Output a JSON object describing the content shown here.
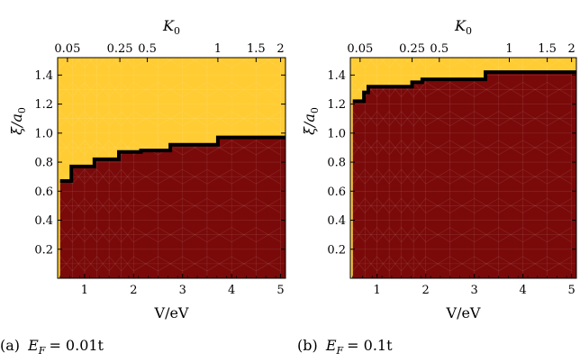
{
  "chart_data": [
    {
      "type": "area",
      "caption_prefix": "(a)",
      "caption_expr": "E",
      "caption_sub": "F",
      "caption_rest": "= 0.01t",
      "xlabel": "V/eV",
      "ylabel_symbol": "ξ",
      "ylabel_rest": "/a",
      "ylabel_sub": "0",
      "top_label": "K",
      "top_label_sub": "0",
      "xlim": [
        0.45,
        5.1
      ],
      "ylim": [
        0,
        1.52
      ],
      "xticks": [
        "1",
        "2",
        "3",
        "4",
        "5"
      ],
      "xtick_values": [
        1,
        2,
        3,
        4,
        5
      ],
      "yticks": [
        "0.2",
        "0.4",
        "0.6",
        "0.8",
        "1.0",
        "1.2",
        "1.4"
      ],
      "ytick_values": [
        0.2,
        0.4,
        0.6,
        0.8,
        1.0,
        1.2,
        1.4
      ],
      "top_ticks": [
        "0.05",
        "0.25",
        "0.5",
        "1",
        "1.5",
        "2"
      ],
      "top_tick_positions": [
        0.65,
        1.72,
        2.28,
        3.72,
        4.5,
        5.0
      ],
      "upper_region_color": "#ffcc33",
      "lower_region_color": "#7a0a0a",
      "boundary_color": "#000000",
      "boundary": {
        "x": [
          0.5,
          0.73,
          0.73,
          1.2,
          1.2,
          1.7,
          1.7,
          2.15,
          2.15,
          2.75,
          2.75,
          3.72,
          3.72,
          5.1
        ],
        "y": [
          0.67,
          0.67,
          0.77,
          0.77,
          0.82,
          0.82,
          0.87,
          0.87,
          0.88,
          0.88,
          0.92,
          0.92,
          0.97,
          0.97
        ]
      }
    },
    {
      "type": "area",
      "caption_prefix": "(b)",
      "caption_expr": "E",
      "caption_sub": "F",
      "caption_rest": "= 0.1t",
      "xlabel": "V/eV",
      "ylabel_symbol": "ξ",
      "ylabel_rest": "/a",
      "ylabel_sub": "0",
      "top_label": "K",
      "top_label_sub": "0",
      "xlim": [
        0.45,
        5.1
      ],
      "ylim": [
        0,
        1.52
      ],
      "xticks": [
        "1",
        "2",
        "3",
        "4",
        "5"
      ],
      "xtick_values": [
        1,
        2,
        3,
        4,
        5
      ],
      "yticks": [
        "0.2",
        "0.4",
        "0.6",
        "0.8",
        "1.0",
        "1.2",
        "1.4"
      ],
      "ytick_values": [
        0.2,
        0.4,
        0.6,
        0.8,
        1.0,
        1.2,
        1.4
      ],
      "top_ticks": [
        "0.05",
        "0.25",
        "0.5",
        "1",
        "1.5",
        "2"
      ],
      "top_tick_positions": [
        0.65,
        1.72,
        2.28,
        3.72,
        4.5,
        5.0
      ],
      "upper_region_color": "#ffcc33",
      "lower_region_color": "#7a0a0a",
      "boundary_color": "#000000",
      "boundary": {
        "x": [
          0.5,
          0.73,
          0.73,
          0.82,
          0.82,
          1.72,
          1.72,
          1.93,
          1.93,
          3.23,
          3.23,
          5.1
        ],
        "y": [
          1.22,
          1.22,
          1.28,
          1.28,
          1.32,
          1.32,
          1.35,
          1.35,
          1.37,
          1.37,
          1.42,
          1.42
        ]
      }
    }
  ]
}
